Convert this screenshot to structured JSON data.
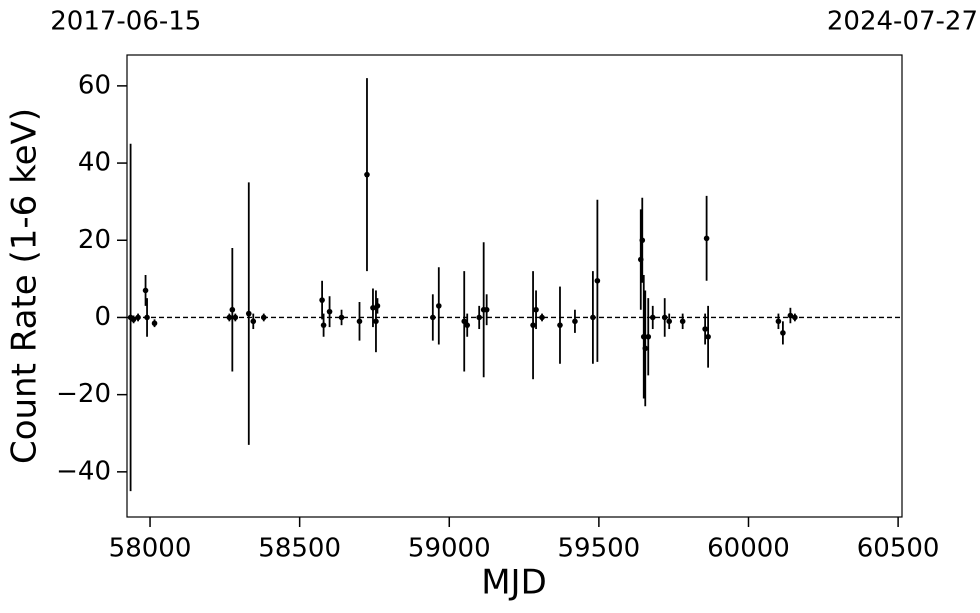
{
  "chart_data": {
    "type": "scatter",
    "xlabel": "MJD",
    "ylabel": "Count Rate (1-6 keV)",
    "xlim": [
      57923,
      60513
    ],
    "ylim": [
      -51.7,
      68.0
    ],
    "xticks": [
      58000,
      58500,
      59000,
      59500,
      60000,
      60500
    ],
    "yticks": [
      {
        "value": -40,
        "label": "−40"
      },
      {
        "value": -20,
        "label": "−20"
      },
      0,
      20,
      40,
      60
    ],
    "x2ticks": [
      {
        "value": 57919,
        "label": "2017-06-15"
      },
      {
        "value": 60518,
        "label": "2024-07-27"
      }
    ],
    "hline": 0,
    "series": [
      {
        "color": "#000000",
        "x": [
          57935,
          57945,
          57960,
          57985,
          57990,
          58015,
          58265,
          58275,
          58285,
          58330,
          58345,
          58380,
          58575,
          58580,
          58600,
          58640,
          58700,
          58725,
          58745,
          58755,
          58760,
          58945,
          58965,
          59050,
          59060,
          59100,
          59115,
          59125,
          59280,
          59290,
          59310,
          59370,
          59420,
          59480,
          59495,
          59640,
          59645,
          59650,
          59655,
          59665,
          59680,
          59720,
          59735,
          59780,
          59855,
          59860,
          59865,
          60100,
          60115,
          60140,
          60155
        ],
        "values": [
          0,
          -0.5,
          0,
          7,
          0,
          -1.5,
          0,
          2,
          0,
          1,
          -1,
          0,
          4.5,
          -2,
          1.5,
          0,
          -1,
          37,
          2.5,
          -1,
          3,
          0,
          3,
          -1,
          -2,
          0,
          2,
          2,
          -2,
          2,
          0,
          -2,
          -1,
          0,
          9.5,
          15,
          20,
          -5,
          -8,
          -5,
          0,
          0,
          -1,
          -1,
          -3,
          20.5,
          -5,
          -1,
          -4,
          0.5,
          0
        ],
        "errors": [
          45,
          1,
          1,
          4,
          5,
          1,
          1,
          16,
          1,
          34,
          2,
          1,
          5,
          3,
          4,
          2,
          5,
          25,
          5,
          8,
          2,
          6,
          10,
          13,
          3,
          3,
          17.5,
          4,
          14,
          5,
          1,
          10,
          3,
          12,
          21,
          13,
          11,
          16,
          15,
          10,
          3,
          5,
          2,
          2,
          4,
          11,
          8,
          2,
          3,
          2,
          1
        ]
      }
    ]
  }
}
